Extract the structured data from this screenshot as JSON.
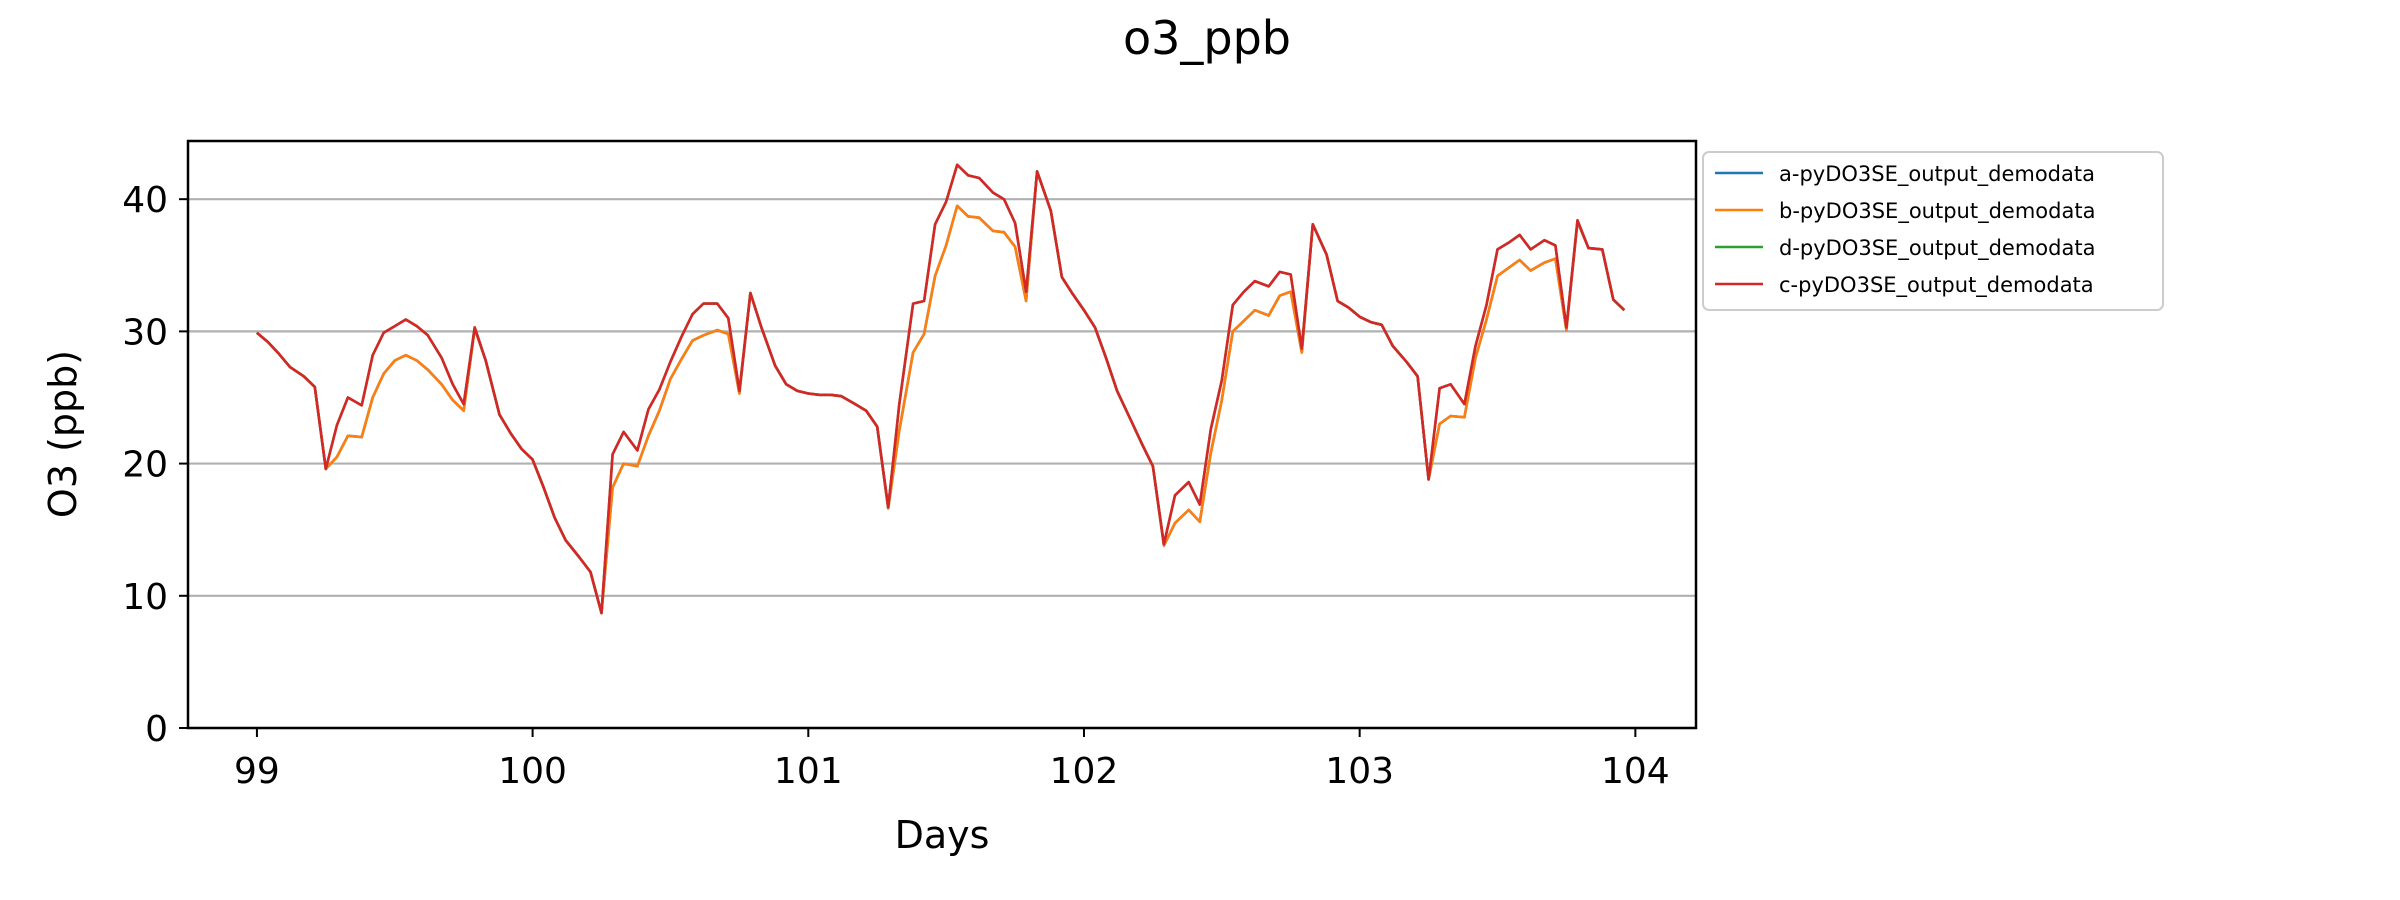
{
  "chart_data": {
    "type": "line",
    "title": "o3_ppb",
    "xlabel": "Days",
    "ylabel": "O3 (ppb)",
    "xlim": [
      98.75,
      104.22
    ],
    "ylim": [
      0,
      44.4
    ],
    "xticks": [
      99,
      100,
      101,
      102,
      103,
      104
    ],
    "yticks": [
      0,
      10,
      20,
      30,
      40
    ],
    "grid": "horizontal",
    "legend_position": "outside-right",
    "x": [
      99.0,
      99.04,
      99.08,
      99.12,
      99.17,
      99.21,
      99.25,
      99.29,
      99.33,
      99.38,
      99.42,
      99.46,
      99.5,
      99.54,
      99.58,
      99.62,
      99.67,
      99.71,
      99.75,
      99.79,
      99.83,
      99.88,
      99.92,
      99.96,
      100.0,
      100.04,
      100.08,
      100.12,
      100.17,
      100.21,
      100.25,
      100.29,
      100.33,
      100.38,
      100.42,
      100.46,
      100.5,
      100.54,
      100.58,
      100.62,
      100.67,
      100.71,
      100.75,
      100.79,
      100.83,
      100.88,
      100.92,
      100.96,
      101.0,
      101.04,
      101.08,
      101.12,
      101.17,
      101.21,
      101.25,
      101.29,
      101.33,
      101.38,
      101.42,
      101.46,
      101.5,
      101.54,
      101.58,
      101.62,
      101.67,
      101.71,
      101.75,
      101.79,
      101.83,
      101.88,
      101.92,
      101.96,
      102.0,
      102.04,
      102.08,
      102.12,
      102.17,
      102.21,
      102.25,
      102.29,
      102.33,
      102.38,
      102.42,
      102.46,
      102.5,
      102.54,
      102.58,
      102.62,
      102.67,
      102.71,
      102.75,
      102.79,
      102.83,
      102.88,
      102.92,
      102.96,
      103.0,
      103.04,
      103.08,
      103.12,
      103.17,
      103.21,
      103.25,
      103.29,
      103.33,
      103.38,
      103.42,
      103.46,
      103.5,
      103.54,
      103.58,
      103.62,
      103.67,
      103.71,
      103.75,
      103.79,
      103.83,
      103.88,
      103.92,
      103.96
    ],
    "series": [
      {
        "name": "a-pyDO3SE_output_demodata",
        "color": "#1f77b4",
        "values": [
          29.9,
          29.2,
          28.3,
          27.3,
          26.6,
          25.8,
          19.6,
          20.5,
          22.1,
          22.0,
          25.0,
          26.8,
          27.8,
          28.2,
          27.8,
          27.1,
          26.0,
          24.8,
          24.0,
          30.2,
          27.8,
          23.7,
          22.3,
          21.1,
          20.3,
          18.2,
          15.9,
          14.2,
          12.9,
          11.8,
          8.7,
          18.2,
          20.0,
          19.8,
          22.1,
          24.0,
          26.4,
          27.9,
          29.3,
          29.7,
          30.1,
          29.8,
          25.3,
          32.9,
          30.3,
          27.4,
          26.0,
          25.5,
          25.3,
          25.2,
          25.2,
          25.1,
          24.5,
          24.0,
          22.8,
          16.6,
          22.5,
          28.4,
          29.8,
          34.2,
          36.5,
          39.5,
          38.7,
          38.6,
          37.6,
          37.5,
          36.4,
          32.3,
          42.1,
          39.1,
          34.1,
          32.8,
          31.6,
          30.3,
          28.0,
          25.5,
          23.3,
          21.5,
          19.8,
          13.8,
          15.5,
          16.5,
          15.6,
          20.8,
          24.8,
          30.0,
          30.8,
          31.6,
          31.2,
          32.7,
          33.0,
          28.4,
          38.1,
          35.8,
          32.3,
          31.8,
          31.1,
          30.7,
          30.5,
          28.9,
          27.7,
          26.6,
          18.8,
          23.0,
          23.6,
          23.5,
          28.0,
          30.9,
          34.2,
          34.8,
          35.4,
          34.6,
          35.2,
          35.5,
          30.1,
          38.3,
          36.3,
          36.2,
          32.4,
          31.6
        ]
      },
      {
        "name": "b-pyDO3SE_output_demodata",
        "color": "#ff7f0e",
        "values": [
          29.9,
          29.2,
          28.3,
          27.3,
          26.6,
          25.8,
          19.6,
          20.5,
          22.1,
          22.0,
          25.0,
          26.8,
          27.8,
          28.2,
          27.8,
          27.1,
          26.0,
          24.8,
          24.0,
          30.2,
          27.8,
          23.7,
          22.3,
          21.1,
          20.3,
          18.2,
          15.9,
          14.2,
          12.9,
          11.8,
          8.7,
          18.2,
          20.0,
          19.8,
          22.1,
          24.0,
          26.4,
          27.9,
          29.3,
          29.7,
          30.1,
          29.8,
          25.3,
          32.9,
          30.3,
          27.4,
          26.0,
          25.5,
          25.3,
          25.2,
          25.2,
          25.1,
          24.5,
          24.0,
          22.8,
          16.6,
          22.5,
          28.4,
          29.8,
          34.2,
          36.5,
          39.5,
          38.7,
          38.6,
          37.6,
          37.5,
          36.4,
          32.3,
          42.1,
          39.1,
          34.1,
          32.8,
          31.6,
          30.3,
          28.0,
          25.5,
          23.3,
          21.5,
          19.8,
          13.8,
          15.5,
          16.5,
          15.6,
          20.8,
          24.8,
          30.0,
          30.8,
          31.6,
          31.2,
          32.7,
          33.0,
          28.4,
          38.1,
          35.8,
          32.3,
          31.8,
          31.1,
          30.7,
          30.5,
          28.9,
          27.7,
          26.6,
          18.8,
          23.0,
          23.6,
          23.5,
          28.0,
          30.9,
          34.2,
          34.8,
          35.4,
          34.6,
          35.2,
          35.5,
          30.1,
          38.3,
          36.3,
          36.2,
          32.4,
          31.6
        ]
      },
      {
        "name": "d-pyDO3SE_output_demodata",
        "color": "#2ca02c",
        "values": [
          29.9,
          29.2,
          28.3,
          27.3,
          26.6,
          25.8,
          19.6,
          22.9,
          25.0,
          24.4,
          28.2,
          29.9,
          30.4,
          30.9,
          30.4,
          29.7,
          28.0,
          26.0,
          24.5,
          30.3,
          27.8,
          23.7,
          22.3,
          21.1,
          20.3,
          18.2,
          15.9,
          14.2,
          12.9,
          11.8,
          8.7,
          20.7,
          22.4,
          21.0,
          24.1,
          25.6,
          27.7,
          29.6,
          31.3,
          32.1,
          32.1,
          31.0,
          25.5,
          32.9,
          30.3,
          27.4,
          26.0,
          25.5,
          25.3,
          25.2,
          25.2,
          25.1,
          24.5,
          24.0,
          22.8,
          16.7,
          24.5,
          32.1,
          32.3,
          38.1,
          39.8,
          42.6,
          41.8,
          41.6,
          40.5,
          40.0,
          38.2,
          33.0,
          42.1,
          39.1,
          34.1,
          32.8,
          31.6,
          30.3,
          28.0,
          25.5,
          23.3,
          21.5,
          19.8,
          13.9,
          17.6,
          18.6,
          16.9,
          22.6,
          26.3,
          32.0,
          33.0,
          33.8,
          33.4,
          34.5,
          34.3,
          28.7,
          38.1,
          35.8,
          32.3,
          31.8,
          31.1,
          30.7,
          30.5,
          28.9,
          27.7,
          26.6,
          18.8,
          25.7,
          26.0,
          24.5,
          28.9,
          32.0,
          36.2,
          36.7,
          37.3,
          36.2,
          36.9,
          36.5,
          30.3,
          38.4,
          36.3,
          36.2,
          32.4,
          31.6
        ]
      },
      {
        "name": "c-pyDO3SE_output_demodata",
        "color": "#d62728",
        "values": [
          29.9,
          29.2,
          28.3,
          27.3,
          26.6,
          25.8,
          19.6,
          22.9,
          25.0,
          24.4,
          28.2,
          29.9,
          30.4,
          30.9,
          30.4,
          29.7,
          28.0,
          26.0,
          24.5,
          30.3,
          27.8,
          23.7,
          22.3,
          21.1,
          20.3,
          18.2,
          15.9,
          14.2,
          12.9,
          11.8,
          8.7,
          20.7,
          22.4,
          21.0,
          24.1,
          25.6,
          27.7,
          29.6,
          31.3,
          32.1,
          32.1,
          31.0,
          25.5,
          32.9,
          30.3,
          27.4,
          26.0,
          25.5,
          25.3,
          25.2,
          25.2,
          25.1,
          24.5,
          24.0,
          22.8,
          16.7,
          24.5,
          32.1,
          32.3,
          38.1,
          39.8,
          42.6,
          41.8,
          41.6,
          40.5,
          40.0,
          38.2,
          33.0,
          42.1,
          39.1,
          34.1,
          32.8,
          31.6,
          30.3,
          28.0,
          25.5,
          23.3,
          21.5,
          19.8,
          13.9,
          17.6,
          18.6,
          16.9,
          22.6,
          26.3,
          32.0,
          33.0,
          33.8,
          33.4,
          34.5,
          34.3,
          28.7,
          38.1,
          35.8,
          32.3,
          31.8,
          31.1,
          30.7,
          30.5,
          28.9,
          27.7,
          26.6,
          18.8,
          25.7,
          26.0,
          24.5,
          28.9,
          32.0,
          36.2,
          36.7,
          37.3,
          36.2,
          36.9,
          36.5,
          30.3,
          38.4,
          36.3,
          36.2,
          32.4,
          31.6
        ]
      }
    ]
  }
}
